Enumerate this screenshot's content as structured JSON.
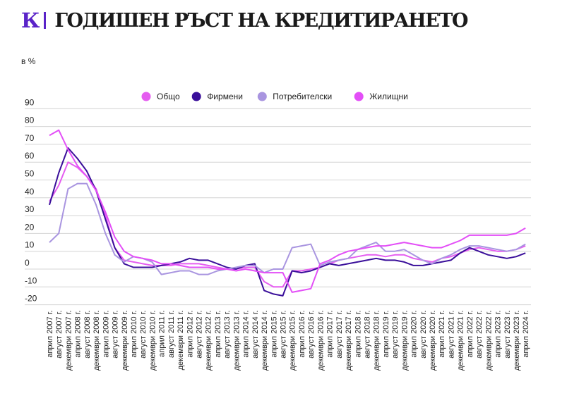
{
  "header": {
    "logo": "К",
    "title": "ГОДИШЕН РЪСТ НА КРЕДИТИРАНЕТО"
  },
  "chart_data": {
    "type": "line",
    "title": "ГОДИШЕН РЪСТ НА КРЕДИТИРАНЕТО",
    "ylabel": "в %",
    "ylim": [
      -20,
      90
    ],
    "yticks": [
      90,
      80,
      70,
      60,
      50,
      40,
      30,
      20,
      10,
      0,
      -10,
      -20
    ],
    "grid": true,
    "legend_position": "top-center",
    "x": [
      "април 2007 г.",
      "август 2007 г.",
      "декември 2007 г.",
      "април 2008 г.",
      "август 2008 г.",
      "декември 2008 г.",
      "април 2009 г.",
      "август 2009 г.",
      "декември 2009 г.",
      "април 2010 г.",
      "август 2010 г.",
      "декември 2010 г.",
      "април 2011 г.",
      "август 2011 г.",
      "декември 2011 г.",
      "април 2012 г.",
      "август 2012 г.",
      "декември 2012 г.",
      "април 2013 г.",
      "август 2013 г.",
      "декември 2013 г.",
      "април 2014 г.",
      "август 2014 г.",
      "декември 2014 г.",
      "април 2015 г.",
      "август 2015 г.",
      "декември 2015 г.",
      "април 2016 г.",
      "август 2016 г.",
      "декември 2016 г.",
      "април 2017 г.",
      "август 2017 г.",
      "декември 2017 г.",
      "април 2018 г.",
      "август 2018 г.",
      "декември 2018 г.",
      "април 2019 г.",
      "август 2019 г.",
      "декември 2019 г.",
      "април 2020 г.",
      "август 2020 г.",
      "декември 2020 г.",
      "април 2021 г.",
      "август 2021 г.",
      "декември 2021 г.",
      "април 2022 г.",
      "август 2022 г.",
      "декември 2022 г.",
      "април 2023 г.",
      "август 2023 г.",
      "декември 2023 г.",
      "април 2024 г."
    ],
    "series": [
      {
        "name": "Общо",
        "color": "#e55df0",
        "values": [
          38,
          47,
          60,
          57,
          52,
          45,
          30,
          12,
          5,
          4,
          3,
          2,
          2,
          2,
          3,
          3,
          3,
          2,
          1,
          0,
          0,
          1,
          1,
          -7,
          -10,
          -10,
          -1,
          -1,
          0,
          1,
          3,
          5,
          6,
          7,
          8,
          8,
          7,
          8,
          8,
          6,
          5,
          4,
          6,
          7,
          9,
          11,
          12,
          11,
          10,
          10,
          11,
          13
        ]
      },
      {
        "name": "Фирмени",
        "color": "#3a0f9a",
        "values": [
          36,
          54,
          68,
          62,
          55,
          44,
          28,
          12,
          3,
          1,
          1,
          1,
          2,
          3,
          4,
          6,
          5,
          5,
          3,
          1,
          0,
          2,
          3,
          -12,
          -14,
          -15,
          -1,
          -2,
          -1,
          1,
          3,
          2,
          3,
          4,
          5,
          6,
          5,
          5,
          4,
          2,
          2,
          3,
          4,
          5,
          9,
          12,
          10,
          8,
          7,
          6,
          7,
          9
        ]
      },
      {
        "name": "Потребителски",
        "color": "#a995e0",
        "values": [
          15,
          20,
          45,
          48,
          48,
          36,
          20,
          8,
          4,
          7,
          6,
          4,
          -3,
          -2,
          -1,
          -1,
          -3,
          -3,
          -1,
          0,
          1,
          2,
          2,
          -2,
          0,
          0,
          12,
          13,
          14,
          2,
          4,
          5,
          6,
          11,
          13,
          15,
          10,
          10,
          11,
          8,
          5,
          3,
          6,
          8,
          11,
          13,
          13,
          12,
          11,
          10,
          11,
          14
        ]
      },
      {
        "name": "Жилищни",
        "color": "#e34ff7",
        "values": [
          75,
          78,
          67,
          58,
          52,
          44,
          32,
          18,
          10,
          7,
          6,
          5,
          3,
          3,
          2,
          1,
          1,
          1,
          0,
          0,
          -1,
          0,
          -1,
          -2,
          -2,
          -2,
          -13,
          -12,
          -11,
          3,
          5,
          8,
          10,
          11,
          12,
          13,
          13,
          14,
          15,
          14,
          13,
          12,
          12,
          14,
          16,
          19,
          19,
          19,
          19,
          19,
          20,
          23
        ]
      }
    ]
  }
}
